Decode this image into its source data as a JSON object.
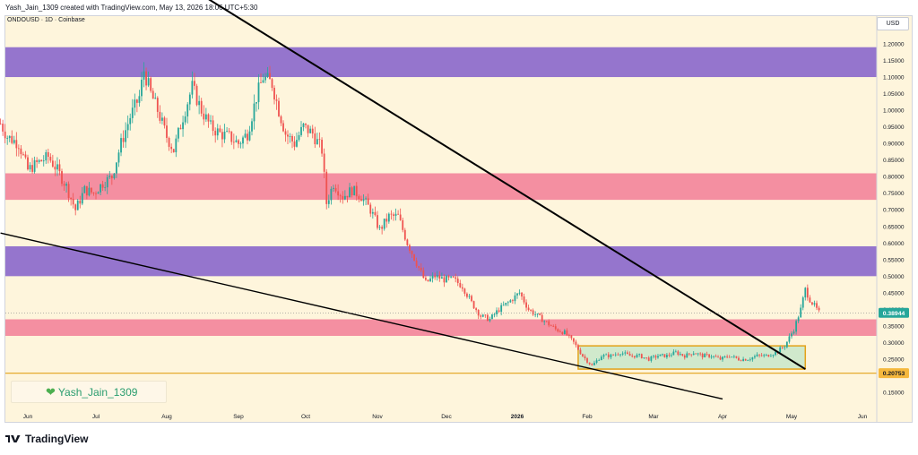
{
  "header": {
    "caption": "Yash_Jain_1309 created with TradingView.com, May 13, 2026 18:06 UTC+5:30"
  },
  "symbol": {
    "label": "ONDOUSD · 1D · Coinbase"
  },
  "currency": {
    "label": "USD"
  },
  "watermark": {
    "text": "Yash_Jain_1309"
  },
  "brand": {
    "name": "TradingView"
  },
  "colors": {
    "background": "#fef5dc",
    "purple_zone": "#9575cd",
    "red_zone": "#f48fa1",
    "green_box": "#c8e6c9",
    "box_border": "#e3a21a",
    "up_candle": "#26a69a",
    "down_candle": "#ef5350",
    "trendline": "#000000"
  },
  "chart_data": {
    "type": "candlestick",
    "title": "ONDOUSD · 1D · Coinbase",
    "xlabel": "",
    "ylabel": "",
    "ylim": [
      0.11,
      1.24
    ],
    "y_ticks": [
      "1.20000",
      "1.15000",
      "1.10000",
      "1.05000",
      "1.00000",
      "0.95000",
      "0.90000",
      "0.85000",
      "0.80000",
      "0.75000",
      "0.70000",
      "0.65000",
      "0.60000",
      "0.55000",
      "0.50000",
      "0.45000",
      "0.40000",
      "0.35000",
      "0.30000",
      "0.25000",
      "0.20000",
      "0.15000"
    ],
    "x_ticks": [
      "Jun",
      "Jul",
      "Aug",
      "Sep",
      "Oct",
      "Nov",
      "Dec",
      "2026",
      "Feb",
      "Mar",
      "Apr",
      "May",
      "Jun"
    ],
    "current_price": "0.38944",
    "marked_price": "0.20753",
    "zones": [
      {
        "kind": "supply",
        "color": "purple",
        "from": 1.1,
        "to": 1.19
      },
      {
        "kind": "resistance",
        "color": "red",
        "from": 0.73,
        "to": 0.81
      },
      {
        "kind": "supply",
        "color": "purple",
        "from": 0.5,
        "to": 0.59
      },
      {
        "kind": "resistance",
        "color": "red",
        "from": 0.32,
        "to": 0.37
      }
    ],
    "accumulation_box": {
      "from_date": "2026-01-28",
      "to_date": "2026-05-07",
      "low": 0.22,
      "high": 0.29
    },
    "trendlines": [
      {
        "name": "descending resistance",
        "start": [
          "2025-07-28",
          1.43
        ],
        "end": [
          "2026-05-07",
          0.22
        ]
      },
      {
        "name": "descending support",
        "start": [
          "2025-05-20",
          0.63
        ],
        "end": [
          "2026-04-01",
          0.13
        ]
      }
    ],
    "horizontal_line": 0.2075,
    "path": [
      [
        "2025-05-20",
        0.96
      ],
      [
        "2025-05-23",
        0.92
      ],
      [
        "2025-05-28",
        0.9
      ],
      [
        "2025-06-01",
        0.82
      ],
      [
        "2025-06-05",
        0.84
      ],
      [
        "2025-06-10",
        0.86
      ],
      [
        "2025-06-14",
        0.82
      ],
      [
        "2025-06-18",
        0.77
      ],
      [
        "2025-06-22",
        0.7
      ],
      [
        "2025-06-26",
        0.76
      ],
      [
        "2025-06-30",
        0.75
      ],
      [
        "2025-07-04",
        0.78
      ],
      [
        "2025-07-08",
        0.8
      ],
      [
        "2025-07-12",
        0.9
      ],
      [
        "2025-07-16",
        0.98
      ],
      [
        "2025-07-20",
        1.04
      ],
      [
        "2025-07-22",
        1.12
      ],
      [
        "2025-07-25",
        1.05
      ],
      [
        "2025-07-28",
        1.0
      ],
      [
        "2025-08-01",
        0.92
      ],
      [
        "2025-08-04",
        0.88
      ],
      [
        "2025-08-08",
        0.98
      ],
      [
        "2025-08-12",
        1.07
      ],
      [
        "2025-08-16",
        1.0
      ],
      [
        "2025-08-20",
        0.95
      ],
      [
        "2025-08-24",
        0.93
      ],
      [
        "2025-08-28",
        0.92
      ],
      [
        "2025-09-01",
        0.9
      ],
      [
        "2025-09-05",
        0.93
      ],
      [
        "2025-09-09",
        1.04
      ],
      [
        "2025-09-12",
        1.1
      ],
      [
        "2025-09-16",
        1.08
      ],
      [
        "2025-09-19",
        1.0
      ],
      [
        "2025-09-22",
        0.93
      ],
      [
        "2025-09-26",
        0.9
      ],
      [
        "2025-09-30",
        0.95
      ],
      [
        "2025-10-04",
        0.93
      ],
      [
        "2025-10-08",
        0.88
      ],
      [
        "2025-10-10",
        0.72
      ],
      [
        "2025-10-13",
        0.78
      ],
      [
        "2025-10-17",
        0.74
      ],
      [
        "2025-10-21",
        0.76
      ],
      [
        "2025-10-25",
        0.74
      ],
      [
        "2025-10-29",
        0.7
      ],
      [
        "2025-11-02",
        0.64
      ],
      [
        "2025-11-06",
        0.68
      ],
      [
        "2025-11-10",
        0.68
      ],
      [
        "2025-11-14",
        0.6
      ],
      [
        "2025-11-18",
        0.54
      ],
      [
        "2025-11-22",
        0.48
      ],
      [
        "2025-11-26",
        0.5
      ],
      [
        "2025-11-30",
        0.49
      ],
      [
        "2025-12-04",
        0.49
      ],
      [
        "2025-12-08",
        0.47
      ],
      [
        "2025-12-12",
        0.42
      ],
      [
        "2025-12-16",
        0.38
      ],
      [
        "2025-12-20",
        0.37
      ],
      [
        "2025-12-24",
        0.4
      ],
      [
        "2025-12-28",
        0.42
      ],
      [
        "2026-01-02",
        0.45
      ],
      [
        "2026-01-06",
        0.4
      ],
      [
        "2026-01-10",
        0.38
      ],
      [
        "2026-01-14",
        0.36
      ],
      [
        "2026-01-18",
        0.34
      ],
      [
        "2026-01-22",
        0.33
      ],
      [
        "2026-01-26",
        0.3
      ],
      [
        "2026-01-30",
        0.26
      ],
      [
        "2026-02-03",
        0.23
      ],
      [
        "2026-02-07",
        0.26
      ],
      [
        "2026-02-11",
        0.26
      ],
      [
        "2026-02-15",
        0.27
      ],
      [
        "2026-02-19",
        0.26
      ],
      [
        "2026-02-23",
        0.26
      ],
      [
        "2026-02-27",
        0.25
      ],
      [
        "2026-03-03",
        0.26
      ],
      [
        "2026-03-07",
        0.26
      ],
      [
        "2026-03-11",
        0.27
      ],
      [
        "2026-03-15",
        0.26
      ],
      [
        "2026-03-19",
        0.27
      ],
      [
        "2026-03-23",
        0.26
      ],
      [
        "2026-03-27",
        0.26
      ],
      [
        "2026-03-31",
        0.25
      ],
      [
        "2026-04-04",
        0.26
      ],
      [
        "2026-04-08",
        0.25
      ],
      [
        "2026-04-12",
        0.25
      ],
      [
        "2026-04-16",
        0.26
      ],
      [
        "2026-04-20",
        0.26
      ],
      [
        "2026-04-24",
        0.27
      ],
      [
        "2026-04-28",
        0.29
      ],
      [
        "2026-05-02",
        0.34
      ],
      [
        "2026-05-05",
        0.4
      ],
      [
        "2026-05-07",
        0.46
      ],
      [
        "2026-05-09",
        0.43
      ],
      [
        "2026-05-11",
        0.41
      ],
      [
        "2026-05-13",
        0.39
      ]
    ]
  }
}
